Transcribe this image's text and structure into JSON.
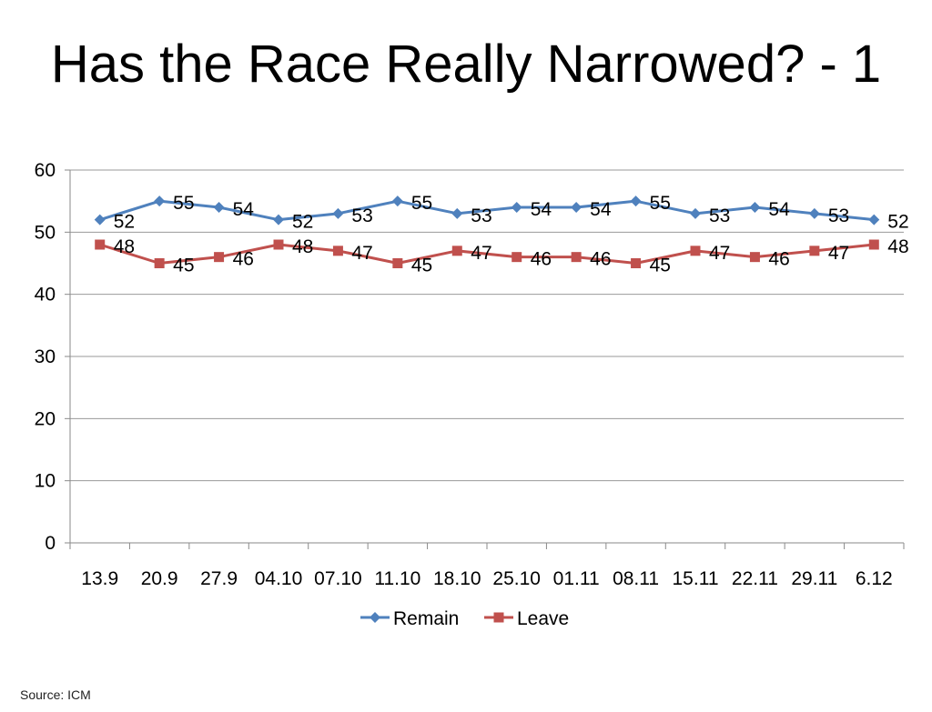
{
  "page": {
    "title": "Has the Race Really Narrowed? - 1",
    "source": "Source: ICM"
  },
  "chart_data": {
    "type": "line",
    "title": "",
    "xlabel": "",
    "ylabel": "",
    "categories": [
      "13.9",
      "20.9",
      "27.9",
      "04.10",
      "07.10",
      "11.10",
      "18.10",
      "25.10",
      "01.11",
      "08.11",
      "15.11",
      "22.11",
      "29.11",
      "6.12"
    ],
    "ylim": [
      0,
      60
    ],
    "yticks": [
      0,
      10,
      20,
      30,
      40,
      50,
      60
    ],
    "grid": true,
    "legend_position": "bottom",
    "series": [
      {
        "name": "Remain",
        "color": "#4F81BD",
        "marker": "diamond",
        "values": [
          52,
          55,
          54,
          52,
          53,
          55,
          53,
          54,
          54,
          55,
          53,
          54,
          53,
          52
        ]
      },
      {
        "name": "Leave",
        "color": "#C0504D",
        "marker": "square",
        "values": [
          48,
          45,
          46,
          48,
          47,
          45,
          47,
          46,
          46,
          45,
          47,
          46,
          47,
          48
        ]
      }
    ]
  }
}
